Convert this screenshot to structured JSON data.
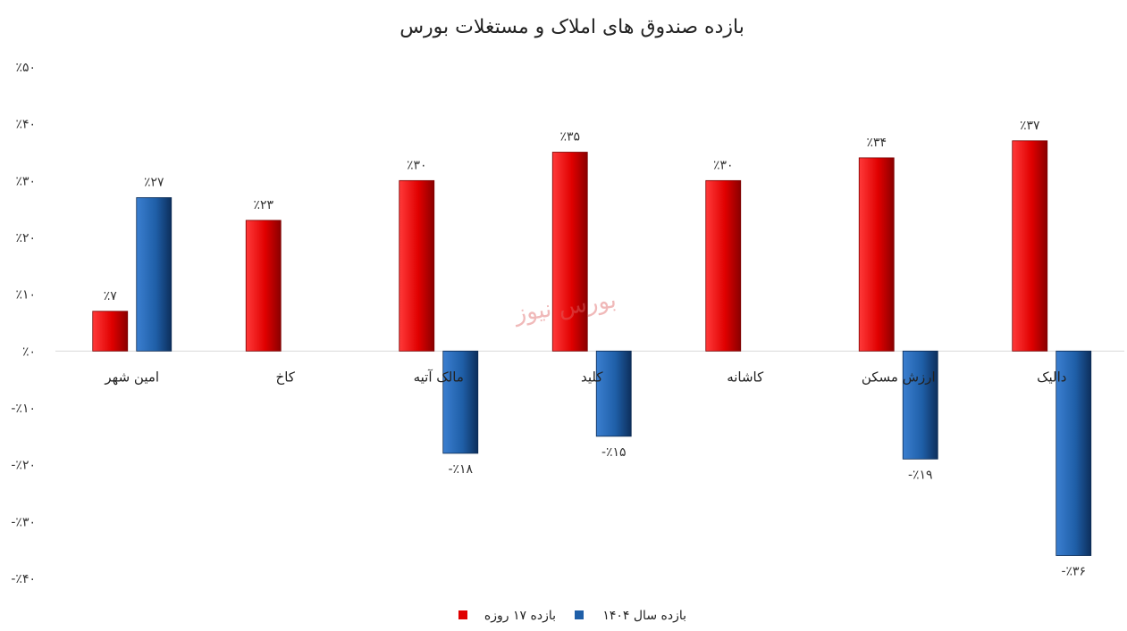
{
  "chart_data": {
    "type": "bar",
    "title": "بازده صندوق های املاک و مستغلات بورس",
    "categories": [
      "امین شهر",
      "کاخ",
      "مالک آتیه",
      "کلید",
      "کاشانه",
      "ارزش مسکن",
      "دالیک"
    ],
    "series": [
      {
        "name": "بازده ۱۷ روزه",
        "color": "#e00000",
        "values": [
          7,
          23,
          30,
          35,
          30,
          34,
          37
        ],
        "labels": [
          "٪۷",
          "٪۲۳",
          "٪۳۰",
          "٪۳۵",
          "٪۳۰",
          "٪۳۴",
          "٪۳۷"
        ]
      },
      {
        "name": "بازده سال ۱۴۰۴",
        "color": "#1f5fa8",
        "values": [
          27,
          null,
          -18,
          -15,
          null,
          -19,
          -36
        ],
        "labels": [
          "٪۲۷",
          "",
          "-٪۱۸",
          "-٪۱۵",
          "",
          "-٪۱۹",
          "-٪۳۶"
        ]
      }
    ],
    "ylim": [
      -40,
      50
    ],
    "yticks": [
      50,
      40,
      30,
      20,
      10,
      0,
      -10,
      -20,
      -30,
      -40
    ],
    "ytick_labels": [
      "٪۵۰",
      "٪۴۰",
      "٪۳۰",
      "٪۲۰",
      "٪۱۰",
      "٪۰",
      "-٪۱۰",
      "-٪۲۰",
      "-٪۳۰",
      "-٪۴۰"
    ],
    "grid": false,
    "legend_position": "bottom-center"
  },
  "watermark": "بورس نیوز"
}
